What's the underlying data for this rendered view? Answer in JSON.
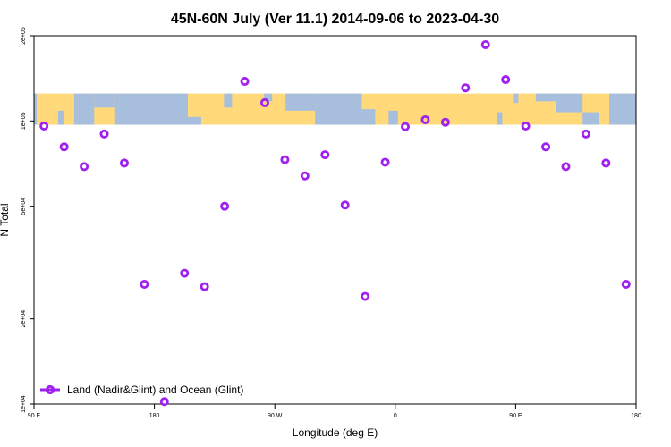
{
  "chart_data": {
    "type": "scatter",
    "title": "45N-60N July (Ver 11.1)   2014-09-06 to 2023-04-30",
    "xlabel": "Longitude (deg E)",
    "ylabel": "N Total",
    "x_ticks": [
      {
        "value": 90,
        "label": "90 E"
      },
      {
        "value": 180,
        "label": "180"
      },
      {
        "value": 270,
        "label": "90 W"
      },
      {
        "value": 360,
        "label": "0"
      },
      {
        "value": 450,
        "label": "90 E"
      },
      {
        "value": 540,
        "label": "180"
      }
    ],
    "y_ticks": [
      {
        "value": 10000,
        "label": "1e+04"
      },
      {
        "value": 20000,
        "label": "2e+04"
      },
      {
        "value": 50000,
        "label": "5e+04"
      },
      {
        "value": 100000,
        "label": "1e+05"
      },
      {
        "value": 200000,
        "label": "2e+05"
      }
    ],
    "xlim": [
      90,
      540
    ],
    "ylim": [
      10000,
      200000
    ],
    "y_scale": "log",
    "grid": false,
    "legend_position": "bottom-left",
    "colors": {
      "marker": "#A020F0",
      "land": "#FFD97A",
      "ocean": "#A8BEDD"
    },
    "map_band": {
      "y_low": 97000,
      "y_high": 125000
    },
    "series": [
      {
        "name": "Land (Nadir&Glint) and Ocean (Glint)",
        "points": [
          {
            "x": 97.5,
            "y": 96000
          },
          {
            "x": 112.5,
            "y": 81000
          },
          {
            "x": 127.5,
            "y": 69000
          },
          {
            "x": 142.5,
            "y": 90000
          },
          {
            "x": 157.5,
            "y": 71000
          },
          {
            "x": 172.5,
            "y": 26500
          },
          {
            "x": 187.5,
            "y": 10200
          },
          {
            "x": 202.5,
            "y": 29000
          },
          {
            "x": 217.5,
            "y": 26000
          },
          {
            "x": 232.5,
            "y": 50000
          },
          {
            "x": 247.5,
            "y": 138000
          },
          {
            "x": 262.5,
            "y": 116000
          },
          {
            "x": 277.5,
            "y": 73000
          },
          {
            "x": 292.5,
            "y": 64000
          },
          {
            "x": 307.5,
            "y": 76000
          },
          {
            "x": 322.5,
            "y": 50500
          },
          {
            "x": 337.5,
            "y": 24000
          },
          {
            "x": 352.5,
            "y": 71500
          },
          {
            "x": 367.5,
            "y": 95500
          },
          {
            "x": 382.5,
            "y": 101000
          },
          {
            "x": 397.5,
            "y": 99000
          },
          {
            "x": 412.5,
            "y": 131000
          },
          {
            "x": 427.5,
            "y": 186000
          },
          {
            "x": 442.5,
            "y": 140000
          },
          {
            "x": 457.5,
            "y": 96000
          },
          {
            "x": 472.5,
            "y": 81000
          },
          {
            "x": 487.5,
            "y": 69000
          },
          {
            "x": 502.5,
            "y": 90000
          },
          {
            "x": 517.5,
            "y": 71000
          },
          {
            "x": 532.5,
            "y": 26500
          }
        ]
      }
    ]
  }
}
